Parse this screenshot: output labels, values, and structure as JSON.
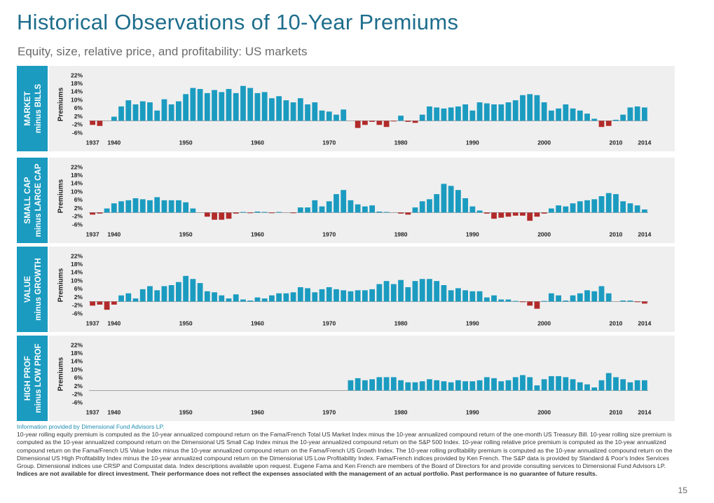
{
  "header": {
    "title": "Historical Observations of 10-Year Premiums",
    "subtitle": "Equity, size, relative price, and profitability: US markets"
  },
  "footer": {
    "source": "Information provided by Dimensional Fund Advisors LP.",
    "notes": "10-year rolling equity premium is computed as the 10-year annualized compound return on the Fama/French Total US Market Index minus the 10-year annualized compound return of the one-month US Treasury Bill. 10-year rolling size premium is computed as the 10-year annualized compound return on the Dimensional US Small Cap Index minus the 10-year annualized compound return on the S&P 500 Index. 10-year rolling relative price premium is computed as the 10-year annualized compound return on the Fama/French US Value Index minus the 10-year annualized compound return on the Fama/French US Growth Index. The 10-year rolling profitability premium is computed as the 10-year annualized compound return on the Dimensional US High Profitability Index minus the 10-year annualized compound return on the Dimensional US Low Profitability Index. Fama/French indices provided by Ken French. The S&P data is provided by Standard & Poor's Index Services Group. Dimensional indices use CRSP and Compustat data. Index descriptions available upon request. Eugene Fama and Ken French are members of the Board of Directors for and provide consulting services to Dimensional Fund Advisors LP.",
    "disclaimer": "Indices are not available for direct investment. Their performance does not reflect the expenses associated with the management of an actual portfolio. Past performance is no guarantee of future results.",
    "page_number": "15"
  },
  "chart_data": [
    {
      "type": "bar",
      "panel_label": [
        "MARKET",
        "minus BILLS"
      ],
      "ylabel": "Premiums",
      "color": "#1b9bc0",
      "negative_color": "#b22a2a",
      "ylim": [
        -6,
        22
      ],
      "yticks": [
        {
          "value": 22,
          "label": "22%"
        },
        {
          "value": 18,
          "label": "18%"
        },
        {
          "value": 14,
          "label": "14%"
        },
        {
          "value": 10,
          "label": "10%"
        },
        {
          "value": 6,
          "label": "6%"
        },
        {
          "value": 2,
          "label": "2%"
        },
        {
          "value": -2,
          "label": "-2%"
        },
        {
          "value": -6,
          "label": "-6%"
        }
      ],
      "categories": [
        "1937",
        null,
        null,
        "1940",
        null,
        null,
        null,
        null,
        null,
        null,
        null,
        null,
        null,
        "1950",
        null,
        null,
        null,
        null,
        null,
        null,
        null,
        null,
        null,
        "1960",
        null,
        null,
        null,
        null,
        null,
        null,
        null,
        null,
        null,
        "1970",
        null,
        null,
        null,
        null,
        null,
        null,
        null,
        null,
        null,
        "1980",
        null,
        null,
        null,
        null,
        null,
        null,
        null,
        null,
        null,
        "1990",
        null,
        null,
        null,
        null,
        null,
        null,
        null,
        null,
        null,
        "2000",
        null,
        null,
        null,
        null,
        null,
        null,
        null,
        null,
        null,
        "2010",
        null,
        null,
        null,
        "2014"
      ],
      "values": [
        -2,
        -2.5,
        0,
        2,
        7,
        10,
        8,
        9.5,
        9,
        5,
        10.5,
        8,
        9.5,
        13,
        16,
        15.5,
        13.5,
        15,
        14,
        15.5,
        13.5,
        17,
        16,
        13.5,
        14,
        11,
        12,
        10,
        9,
        11,
        8,
        9,
        5,
        4.5,
        3,
        5.5,
        0,
        -3.5,
        -2,
        -0.5,
        -2,
        -3,
        -0.3,
        2.5,
        -0.5,
        -1,
        3,
        7,
        6.5,
        6,
        6.5,
        7,
        8,
        5,
        9,
        8.5,
        8,
        8,
        9,
        10,
        12.5,
        13,
        12.5,
        9,
        5,
        6,
        8,
        6,
        5,
        3.5,
        1,
        -3,
        -2.5,
        0.5,
        3,
        6.5,
        7,
        6.5
      ]
    },
    {
      "type": "bar",
      "panel_label": [
        "SMALL CAP",
        "minus LARGE CAP"
      ],
      "ylabel": "Premiums",
      "color": "#1b9bc0",
      "negative_color": "#b22a2a",
      "ylim": [
        -6,
        22
      ],
      "yticks": [
        {
          "value": 22,
          "label": "22%"
        },
        {
          "value": 18,
          "label": "18%"
        },
        {
          "value": 14,
          "label": "14%"
        },
        {
          "value": 10,
          "label": "10%"
        },
        {
          "value": 6,
          "label": "6%"
        },
        {
          "value": 2,
          "label": "2%"
        },
        {
          "value": -2,
          "label": "-2%"
        },
        {
          "value": -6,
          "label": "-6%"
        }
      ],
      "categories": [
        "1937",
        null,
        null,
        "1940",
        null,
        null,
        null,
        null,
        null,
        null,
        null,
        null,
        null,
        "1950",
        null,
        null,
        null,
        null,
        null,
        null,
        null,
        null,
        null,
        "1960",
        null,
        null,
        null,
        null,
        null,
        null,
        null,
        null,
        null,
        "1970",
        null,
        null,
        null,
        null,
        null,
        null,
        null,
        null,
        null,
        "1980",
        null,
        null,
        null,
        null,
        null,
        null,
        null,
        null,
        null,
        "1990",
        null,
        null,
        null,
        null,
        null,
        null,
        null,
        null,
        null,
        "2000",
        null,
        null,
        null,
        null,
        null,
        null,
        null,
        null,
        null,
        "2010",
        null,
        null,
        null,
        "2014"
      ],
      "values": [
        -1,
        -0.5,
        2,
        4.5,
        5.5,
        6,
        7,
        6.5,
        6,
        7.5,
        6,
        6,
        6,
        5,
        2,
        0,
        -2,
        -3.5,
        -3.5,
        -3,
        -0.5,
        0.3,
        -0.3,
        0.5,
        0.3,
        -0.3,
        0.3,
        0,
        -0.3,
        2.5,
        2.5,
        6,
        3,
        5.5,
        9,
        11,
        6,
        4,
        3,
        3.5,
        0.5,
        0.3,
        0,
        -0.5,
        -1,
        2.5,
        5.5,
        6.5,
        9,
        14,
        13,
        11,
        7,
        3,
        1,
        -0.5,
        -3,
        -2.5,
        -2,
        -1.5,
        -1.5,
        -4,
        -2,
        -0.5,
        2,
        3.5,
        3,
        4.5,
        5.5,
        6,
        6.5,
        8,
        9.5,
        9,
        5.5,
        4.5,
        3.5,
        1.5
      ]
    },
    {
      "type": "bar",
      "panel_label": [
        "VALUE",
        "minus GROWTH"
      ],
      "ylabel": "Premiums",
      "color": "#1b9bc0",
      "negative_color": "#b22a2a",
      "ylim": [
        -6,
        22
      ],
      "yticks": [
        {
          "value": 22,
          "label": "22%"
        },
        {
          "value": 18,
          "label": "18%"
        },
        {
          "value": 14,
          "label": "14%"
        },
        {
          "value": 10,
          "label": "10%"
        },
        {
          "value": 6,
          "label": "6%"
        },
        {
          "value": 2,
          "label": "2%"
        },
        {
          "value": -2,
          "label": "-2%"
        },
        {
          "value": -6,
          "label": "-6%"
        }
      ],
      "categories": [
        "1937",
        null,
        null,
        "1940",
        null,
        null,
        null,
        null,
        null,
        null,
        null,
        null,
        null,
        "1950",
        null,
        null,
        null,
        null,
        null,
        null,
        null,
        null,
        null,
        "1960",
        null,
        null,
        null,
        null,
        null,
        null,
        null,
        null,
        null,
        "1970",
        null,
        null,
        null,
        null,
        null,
        null,
        null,
        null,
        null,
        "1980",
        null,
        null,
        null,
        null,
        null,
        null,
        null,
        null,
        null,
        "1990",
        null,
        null,
        null,
        null,
        null,
        null,
        null,
        null,
        null,
        "2000",
        null,
        null,
        null,
        null,
        null,
        null,
        null,
        null,
        null,
        "2010",
        null,
        null,
        null,
        "2014"
      ],
      "values": [
        -2,
        -1.5,
        -4,
        -1.5,
        3,
        4,
        1.5,
        6,
        7.5,
        5.5,
        7.5,
        8,
        9.5,
        12.5,
        11,
        9,
        5,
        4.5,
        3,
        1.5,
        3.5,
        1,
        0.5,
        2,
        1.5,
        3,
        4,
        4,
        4.5,
        7,
        6.5,
        4.5,
        6,
        7,
        6,
        5.5,
        5,
        5.5,
        5.5,
        6,
        8.5,
        10,
        8.5,
        10.5,
        7,
        10,
        11,
        11,
        10,
        8,
        5.5,
        6.5,
        5.5,
        5,
        5,
        2,
        3,
        1,
        1,
        0.3,
        -0.3,
        -2,
        -3.5,
        0.3,
        4,
        3,
        0.5,
        3,
        4,
        5.5,
        5,
        7.5,
        4,
        0,
        0.5,
        0.5,
        -0.3,
        -1
      ]
    },
    {
      "type": "bar",
      "panel_label": [
        "HIGH PROF",
        "minus LOW PROF"
      ],
      "ylabel": "Premiums",
      "color": "#1b9bc0",
      "negative_color": "#b22a2a",
      "ylim": [
        -6,
        22
      ],
      "yticks": [
        {
          "value": 22,
          "label": "22%"
        },
        {
          "value": 18,
          "label": "18%"
        },
        {
          "value": 14,
          "label": "14%"
        },
        {
          "value": 10,
          "label": "10%"
        },
        {
          "value": 6,
          "label": "6%"
        },
        {
          "value": 2,
          "label": "2%"
        },
        {
          "value": -2,
          "label": "-2%"
        },
        {
          "value": -6,
          "label": "-6%"
        }
      ],
      "categories": [
        "1937",
        null,
        null,
        "1940",
        null,
        null,
        null,
        null,
        null,
        null,
        null,
        null,
        null,
        "1950",
        null,
        null,
        null,
        null,
        null,
        null,
        null,
        null,
        null,
        "1960",
        null,
        null,
        null,
        null,
        null,
        null,
        null,
        null,
        null,
        "1970",
        null,
        null,
        null,
        null,
        null,
        null,
        null,
        null,
        null,
        "1980",
        null,
        null,
        null,
        null,
        null,
        null,
        null,
        null,
        null,
        "1990",
        null,
        null,
        null,
        null,
        null,
        null,
        null,
        null,
        null,
        "2000",
        null,
        null,
        null,
        null,
        null,
        null,
        null,
        null,
        null,
        "2010",
        null,
        null,
        null,
        "2014"
      ],
      "values": [
        null,
        null,
        null,
        null,
        null,
        null,
        null,
        null,
        null,
        null,
        null,
        null,
        null,
        null,
        null,
        null,
        null,
        null,
        null,
        null,
        null,
        null,
        null,
        null,
        null,
        null,
        null,
        null,
        null,
        null,
        null,
        null,
        null,
        null,
        null,
        null,
        5,
        6,
        5,
        5.5,
        6.5,
        6.5,
        6.5,
        5,
        4,
        4,
        4.5,
        5.5,
        5,
        4.5,
        4,
        5,
        4.5,
        4.5,
        5,
        6.5,
        6,
        4.5,
        5,
        6.5,
        7.5,
        6.5,
        2.5,
        5.5,
        7,
        7,
        6.5,
        5.5,
        4,
        3,
        1.5,
        5,
        8.5,
        6.5,
        5.5,
        4,
        5,
        5
      ]
    }
  ]
}
